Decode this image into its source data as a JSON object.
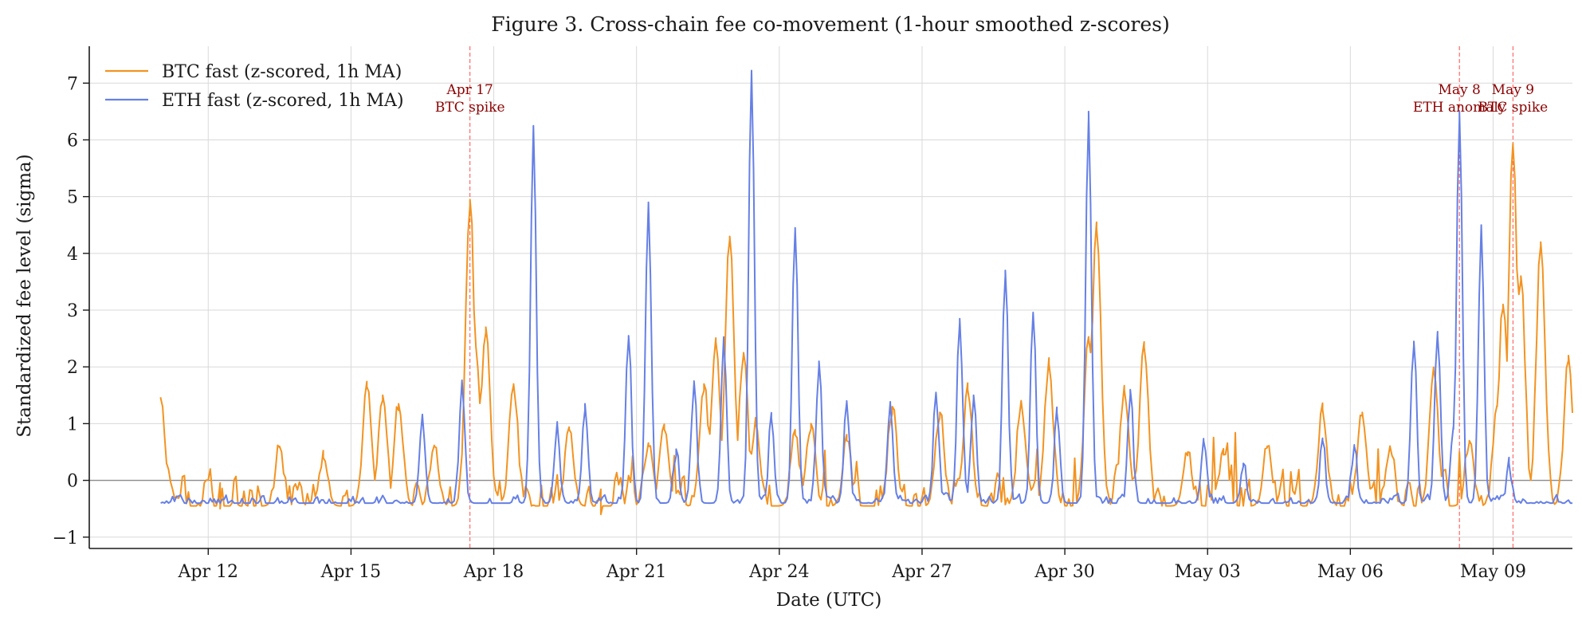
{
  "chart_data": {
    "type": "line",
    "title": "Figure 3. Cross-chain fee co-movement (1-hour smoothed z-scores)",
    "xlabel": "Date (UTC)",
    "ylabel": "Standardized fee level (sigma)",
    "x_range": [
      "2026-04-09T12:00",
      "2026-05-10T16:00"
    ],
    "ylim": [
      -1.2,
      7.65
    ],
    "grid": true,
    "legend_position": "top-left",
    "x_ticks": [
      {
        "date": "2026-04-12",
        "label": "Apr 12"
      },
      {
        "date": "2026-04-15",
        "label": "Apr 15"
      },
      {
        "date": "2026-04-18",
        "label": "Apr 18"
      },
      {
        "date": "2026-04-21",
        "label": "Apr 21"
      },
      {
        "date": "2026-04-24",
        "label": "Apr 24"
      },
      {
        "date": "2026-04-27",
        "label": "Apr 27"
      },
      {
        "date": "2026-04-30",
        "label": "Apr 30"
      },
      {
        "date": "2026-05-03",
        "label": "May 03"
      },
      {
        "date": "2026-05-06",
        "label": "May 06"
      },
      {
        "date": "2026-05-09",
        "label": "May 09"
      }
    ],
    "y_ticks": [
      {
        "value": -1,
        "label": "−1"
      },
      {
        "value": 0,
        "label": "0"
      },
      {
        "value": 1,
        "label": "1"
      },
      {
        "value": 2,
        "label": "2"
      },
      {
        "value": 3,
        "label": "3"
      },
      {
        "value": 4,
        "label": "4"
      },
      {
        "value": 5,
        "label": "5"
      },
      {
        "value": 6,
        "label": "6"
      },
      {
        "value": 7,
        "label": "7"
      }
    ],
    "reference_line": {
      "y": 0,
      "color": "#8c8c8c"
    },
    "events": [
      {
        "date": "2026-04-17T12:00",
        "line1": "Apr 17",
        "line2": "BTC spike"
      },
      {
        "date": "2026-05-08T07:00",
        "line1": "May 8",
        "line2": "ETH anomaly"
      },
      {
        "date": "2026-05-09T10:00",
        "line1": "May 9",
        "line2": "BTC spike"
      }
    ],
    "series": [
      {
        "name": "BTC fast (z-scored, 1h MA)",
        "color": "#f39321",
        "baseline": -0.45,
        "noise": 0.55,
        "start": "2026-04-11T00:00",
        "end": "2026-05-10T16:00",
        "points": [
          [
            "2026-04-11T00:00",
            1.45
          ],
          [
            "2026-04-11T03:00",
            0.3
          ],
          [
            "2026-04-11T08:00",
            -0.3
          ],
          [
            "2026-04-12T06:00",
            -0.5
          ],
          [
            "2026-04-13T12:00",
            0.6
          ],
          [
            "2026-04-14T10:00",
            0.4
          ],
          [
            "2026-04-15T08:00",
            1.65
          ],
          [
            "2026-04-15T16:00",
            1.5
          ],
          [
            "2026-04-16T00:00",
            1.35
          ],
          [
            "2026-04-16T18:00",
            0.6
          ],
          [
            "2026-04-17T12:00",
            4.95
          ],
          [
            "2026-04-17T15:00",
            2.35
          ],
          [
            "2026-04-17T20:00",
            2.7
          ],
          [
            "2026-04-18T10:00",
            1.7
          ],
          [
            "2026-04-19T14:00",
            0.9
          ],
          [
            "2026-04-20T06:00",
            -0.6
          ],
          [
            "2026-04-21T06:00",
            0.6
          ],
          [
            "2026-04-21T14:00",
            0.9
          ],
          [
            "2026-04-22T10:00",
            1.7
          ],
          [
            "2026-04-22T16:00",
            2.45
          ],
          [
            "2026-04-22T23:00",
            4.3
          ],
          [
            "2026-04-23T06:00",
            2.25
          ],
          [
            "2026-04-23T12:00",
            1.0
          ],
          [
            "2026-04-24T08:00",
            0.8
          ],
          [
            "2026-04-24T16:00",
            1.0
          ],
          [
            "2026-04-25T10:00",
            0.7
          ],
          [
            "2026-04-26T09:00",
            1.3
          ],
          [
            "2026-04-27T09:00",
            1.2
          ],
          [
            "2026-04-27T23:00",
            1.6
          ],
          [
            "2026-04-29T02:00",
            1.4
          ],
          [
            "2026-04-29T16:00",
            2.05
          ],
          [
            "2026-04-30T12:00",
            2.5
          ],
          [
            "2026-04-30T16:00",
            4.45
          ],
          [
            "2026-05-01T06:00",
            1.6
          ],
          [
            "2026-05-01T16:00",
            2.35
          ],
          [
            "2026-05-02T14:00",
            0.5
          ],
          [
            "2026-05-03T08:00",
            0.45
          ],
          [
            "2026-05-04T06:00",
            0.6
          ],
          [
            "2026-05-05T10:00",
            1.25
          ],
          [
            "2026-05-06T06:00",
            1.2
          ],
          [
            "2026-05-06T20:00",
            0.6
          ],
          [
            "2026-05-07T18:00",
            1.95
          ],
          [
            "2026-05-08T12:00",
            0.7
          ],
          [
            "2026-05-09T02:00",
            1.3
          ],
          [
            "2026-05-09T05:00",
            3.1
          ],
          [
            "2026-05-09T10:00",
            5.9
          ],
          [
            "2026-05-09T14:00",
            3.6
          ],
          [
            "2026-05-10T00:00",
            4.2
          ],
          [
            "2026-05-10T14:00",
            2.2
          ]
        ]
      },
      {
        "name": "ETH fast (z-scored, 1h MA)",
        "color": "#6680e6",
        "baseline": -0.4,
        "noise": 0.13,
        "start": "2026-04-11T00:00",
        "end": "2026-05-10T16:00",
        "points": [
          [
            "2026-04-16T12:00",
            1.15
          ],
          [
            "2026-04-17T08:00",
            1.75
          ],
          [
            "2026-04-18T20:00",
            6.25
          ],
          [
            "2026-04-19T08:00",
            1.0
          ],
          [
            "2026-04-19T22:00",
            1.35
          ],
          [
            "2026-04-20T20:00",
            2.55
          ],
          [
            "2026-04-21T06:00",
            4.9
          ],
          [
            "2026-04-21T20:00",
            0.55
          ],
          [
            "2026-04-22T05:00",
            1.75
          ],
          [
            "2026-04-22T20:00",
            2.45
          ],
          [
            "2026-04-23T10:00",
            7.2
          ],
          [
            "2026-04-23T20:00",
            1.1
          ],
          [
            "2026-04-24T08:00",
            4.45
          ],
          [
            "2026-04-24T20:00",
            2.1
          ],
          [
            "2026-04-25T10:00",
            1.4
          ],
          [
            "2026-04-26T08:00",
            1.35
          ],
          [
            "2026-04-27T07:00",
            1.55
          ],
          [
            "2026-04-27T19:00",
            2.85
          ],
          [
            "2026-04-28T02:00",
            1.5
          ],
          [
            "2026-04-28T18:00",
            3.7
          ],
          [
            "2026-04-29T08:00",
            2.95
          ],
          [
            "2026-04-29T20:00",
            1.2
          ],
          [
            "2026-04-30T12:00",
            6.5
          ],
          [
            "2026-05-01T09:00",
            1.6
          ],
          [
            "2026-05-02T22:00",
            0.7
          ],
          [
            "2026-05-03T18:00",
            0.3
          ],
          [
            "2026-05-05T10:00",
            0.7
          ],
          [
            "2026-05-06T02:00",
            0.6
          ],
          [
            "2026-05-07T08:00",
            2.45
          ],
          [
            "2026-05-07T20:00",
            2.55
          ],
          [
            "2026-05-08T04:00",
            0.9
          ],
          [
            "2026-05-08T07:00",
            6.5
          ],
          [
            "2026-05-08T18:00",
            4.5
          ],
          [
            "2026-05-09T08:00",
            0.3
          ]
        ]
      }
    ]
  }
}
